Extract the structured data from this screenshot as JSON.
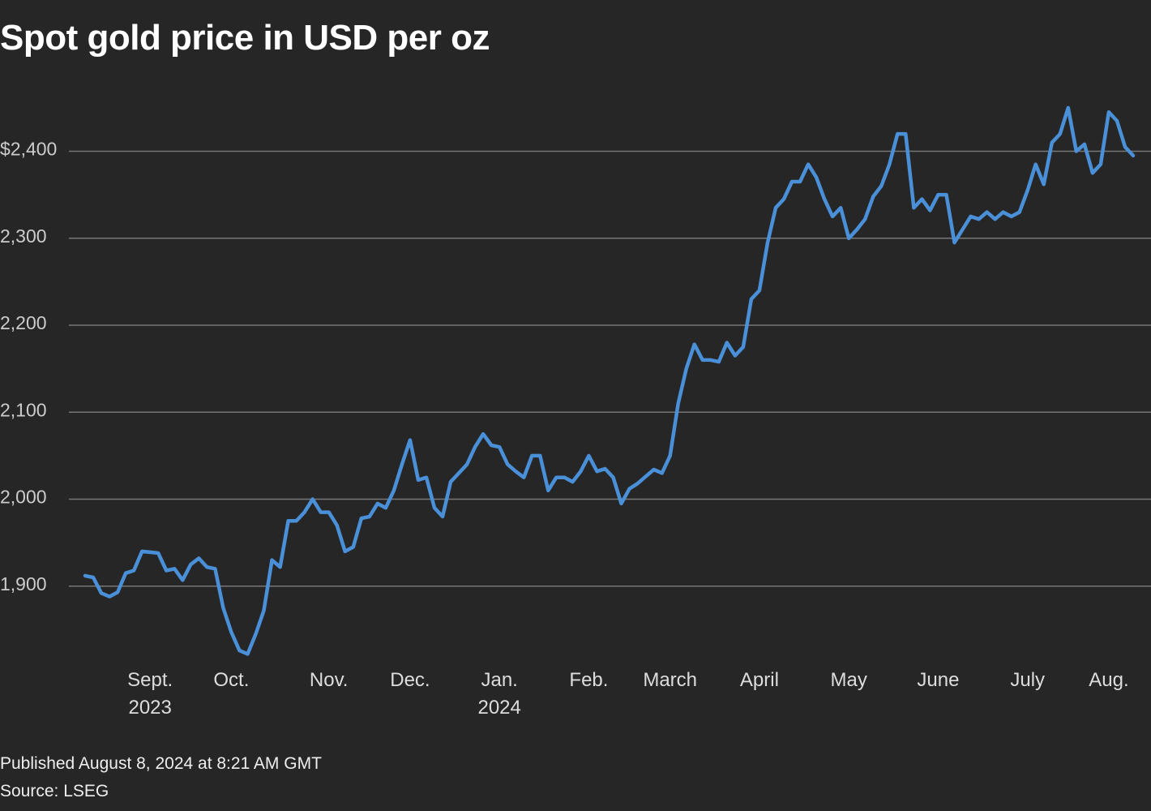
{
  "chart_data": {
    "type": "line",
    "title": "Spot gold price in USD per oz",
    "categories": [
      null,
      null,
      null,
      null,
      null,
      null,
      null,
      null,
      "Sept.\n2023",
      null,
      null,
      null,
      null,
      null,
      null,
      null,
      null,
      null,
      "Oct.",
      null,
      null,
      null,
      null,
      null,
      null,
      null,
      null,
      null,
      null,
      null,
      "Nov.",
      null,
      null,
      null,
      null,
      null,
      null,
      null,
      null,
      null,
      "Dec.",
      null,
      null,
      null,
      null,
      null,
      null,
      null,
      null,
      null,
      null,
      "Jan.\n2024",
      null,
      null,
      null,
      null,
      null,
      null,
      null,
      null,
      null,
      null,
      "Feb.",
      null,
      null,
      null,
      null,
      null,
      null,
      null,
      null,
      null,
      "March",
      null,
      null,
      null,
      null,
      null,
      null,
      null,
      null,
      null,
      null,
      "April",
      null,
      null,
      null,
      null,
      null,
      null,
      null,
      null,
      null,
      null,
      "May",
      null,
      null,
      null,
      null,
      null,
      null,
      null,
      null,
      null,
      null,
      "June",
      null,
      null,
      null,
      null,
      null,
      null,
      null,
      null,
      null,
      null,
      "July",
      null,
      null,
      null,
      null,
      null,
      null,
      null,
      null,
      null,
      "Aug.",
      null,
      null,
      null
    ],
    "values": [
      1912,
      1910,
      1892,
      1888,
      1893,
      1915,
      1918,
      1940,
      1939,
      1938,
      1918,
      1920,
      1907,
      1925,
      1932,
      1922,
      1920,
      1875,
      1847,
      1826,
      1822,
      1845,
      1872,
      1930,
      1922,
      1975,
      1975,
      1985,
      2000,
      1985,
      1985,
      1970,
      1940,
      1945,
      1978,
      1980,
      1995,
      1990,
      2010,
      2040,
      2068,
      2022,
      2025,
      1990,
      1980,
      2020,
      2030,
      2040,
      2060,
      2075,
      2062,
      2060,
      2040,
      2032,
      2025,
      2050,
      2050,
      2010,
      2025,
      2025,
      2020,
      2032,
      2050,
      2032,
      2035,
      2025,
      1995,
      2012,
      2018,
      2026,
      2034,
      2030,
      2050,
      2110,
      2150,
      2178,
      2160,
      2160,
      2158,
      2180,
      2165,
      2175,
      2230,
      2240,
      2295,
      2335,
      2345,
      2365,
      2365,
      2385,
      2370,
      2345,
      2325,
      2335,
      2300,
      2310,
      2322,
      2348,
      2360,
      2385,
      2420,
      2420,
      2335,
      2345,
      2332,
      2350,
      2350,
      2295,
      2310,
      2325,
      2322,
      2330,
      2322,
      2330,
      2325,
      2330,
      2355,
      2385,
      2362,
      2410,
      2420,
      2450,
      2400,
      2408,
      2375,
      2385,
      2445,
      2435,
      2405,
      2395
    ],
    "color": "#4a90d9",
    "ylim": [
      1814,
      2476
    ],
    "yticks": [
      {
        "value": 1900,
        "label": "1,900"
      },
      {
        "value": 2000,
        "label": "2,000"
      },
      {
        "value": 2100,
        "label": "2,100"
      },
      {
        "value": 2200,
        "label": "2,200"
      },
      {
        "value": 2300,
        "label": "2,300"
      },
      {
        "value": 2400,
        "label": "$2,400"
      }
    ],
    "grid": true,
    "published": "Published August 8, 2024 at 8:21 AM GMT",
    "source": "Source: LSEG"
  }
}
